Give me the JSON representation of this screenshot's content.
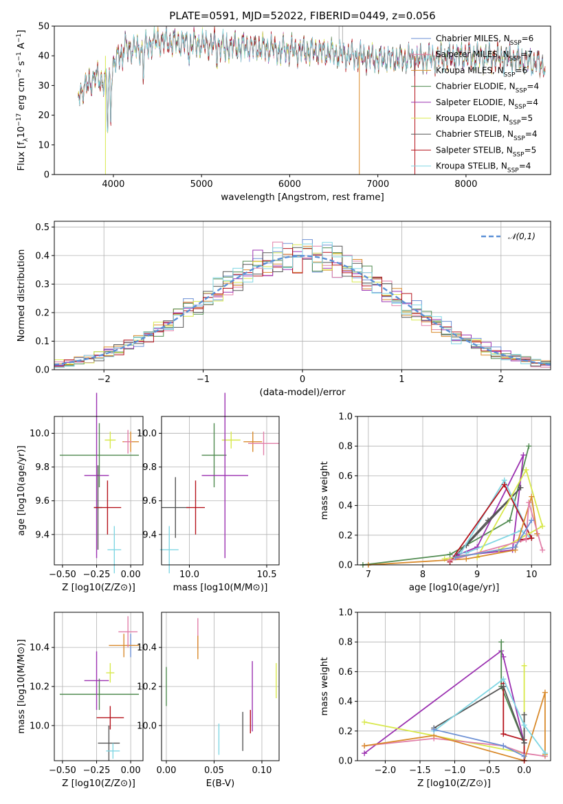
{
  "figure_title": "PLATE=0591, MJD=52022, FIBERID=0449, z=0.056",
  "colors": [
    "#6b8fd4",
    "#e17ea8",
    "#d98a2b",
    "#4f8a4f",
    "#9b30b0",
    "#d8e84a",
    "#555555",
    "#b5121b",
    "#7fd6e3"
  ],
  "chart_data": [
    {
      "type": "line",
      "panel": "spectrum",
      "title": "PLATE=0591, MJD=52022, FIBERID=0449, z=0.056",
      "xlabel": "wavelength [Angstrom, rest frame]",
      "ylabel": "Flux [f_λ 10^-17 erg cm^-2 s^-1 A^-1]",
      "xlim": [
        3330,
        8960
      ],
      "ylim": [
        0,
        50
      ],
      "xticks": [
        "4000",
        "5000",
        "6000",
        "7000",
        "8000"
      ],
      "yticks": [
        "0",
        "10",
        "20",
        "30",
        "40",
        "50"
      ],
      "grid": false,
      "legend_position": "top-right",
      "series": [
        {
          "name": "Chabrier MILES, N_SSP=6"
        },
        {
          "name": "Salpeter MILES, N_SSP=7"
        },
        {
          "name": "Kroupa MILES, N_SSP=6"
        },
        {
          "name": "Chabrier ELODIE, N_SSP=4"
        },
        {
          "name": "Salpeter ELODIE, N_SSP=4"
        },
        {
          "name": "Kroupa ELODIE, N_SSP=5"
        },
        {
          "name": "Chabrier STELIB, N_SSP=4"
        },
        {
          "name": "Salpeter STELIB, N_SSP=5"
        },
        {
          "name": "Kroupa STELIB, N_SSP=4"
        }
      ],
      "continuum": {
        "x": [
          3600,
          3700,
          3800,
          3900,
          4000,
          4100,
          4300,
          4500,
          5000,
          5500,
          6000,
          6500,
          7000,
          7500,
          8000,
          8500,
          8900
        ],
        "y": [
          27,
          30,
          33,
          31,
          36,
          43,
          42,
          45,
          44,
          43,
          42,
          41,
          39,
          39,
          40,
          39,
          37
        ]
      },
      "vertical_lines_x": [
        3910,
        6790,
        7420,
        6560,
        6600
      ]
    },
    {
      "type": "bar",
      "panel": "residual histogram",
      "xlabel": "(data-model)/error",
      "ylabel": "Normed distribution",
      "xlim": [
        -2.5,
        2.5
      ],
      "ylim": [
        0,
        0.52
      ],
      "xticks": [
        "−2",
        "−1",
        "0",
        "1",
        "2"
      ],
      "yticks": [
        "0.0",
        "0.1",
        "0.2",
        "0.3",
        "0.4",
        "0.5"
      ],
      "grid": true,
      "legend_position": "top-right",
      "bins": 50,
      "reference_curve": {
        "name": "𝒩(0,1)",
        "color": "#5a8fd6",
        "dashed": true
      },
      "series_count": 9
    },
    {
      "type": "scatter",
      "panel": "Z vs age",
      "xlabel": "Z [log10(Z/Z⊙)]",
      "ylabel": "age  [log10(age/yr)]",
      "xlim": [
        -0.56,
        0.09
      ],
      "ylim": [
        9.22,
        10.1
      ],
      "xticks": [
        "−0.50",
        "−0.25",
        "0.00"
      ],
      "yticks": [
        "9.4",
        "9.6",
        "9.8",
        "10.0"
      ],
      "grid": true,
      "points": [
        {
          "x": 0.0,
          "y": 9.95,
          "xerr": 0.06,
          "yerr": 0.06,
          "color": "#d98a2b"
        },
        {
          "x": -0.02,
          "y": 9.95,
          "xerr": 0.03,
          "yerr": 0.07,
          "color": "#e17ea8"
        },
        {
          "x": -0.15,
          "y": 9.96,
          "xerr": 0.04,
          "yerr": 0.05,
          "color": "#d8e84a"
        },
        {
          "x": -0.23,
          "y": 9.87,
          "xerr": 0.29,
          "yerr": 0.19,
          "color": "#4f8a4f"
        },
        {
          "x": -0.25,
          "y": 9.75,
          "xerr": 0.09,
          "yerr": 0.49,
          "color": "#9b30b0"
        },
        {
          "x": -0.24,
          "y": 9.56,
          "xerr": 0.03,
          "yerr": 0.25,
          "color": "#555555"
        },
        {
          "x": -0.17,
          "y": 9.56,
          "xerr": 0.1,
          "yerr": 0.16,
          "color": "#b5121b"
        },
        {
          "x": -0.12,
          "y": 9.31,
          "xerr": 0.05,
          "yerr": 0.14,
          "color": "#7fd6e3"
        }
      ]
    },
    {
      "type": "scatter",
      "panel": "mass vs age",
      "xlabel": "mass [log10(M/M⊙)]",
      "ylabel": "",
      "xlim": [
        9.82,
        10.58
      ],
      "ylim": [
        9.22,
        10.1
      ],
      "xticks": [
        "10.0",
        "10.5"
      ],
      "yticks": [
        "9.4",
        "9.6",
        "9.8",
        "10.0"
      ],
      "grid": true,
      "points": [
        {
          "x": 10.41,
          "y": 9.95,
          "xerr": 0.06,
          "yerr": 0.06,
          "color": "#d98a2b"
        },
        {
          "x": 10.48,
          "y": 9.94,
          "xerr": 0.1,
          "yerr": 0.07,
          "color": "#e17ea8"
        },
        {
          "x": 10.27,
          "y": 9.96,
          "xerr": 0.06,
          "yerr": 0.05,
          "color": "#d8e84a"
        },
        {
          "x": 10.16,
          "y": 9.87,
          "xerr": 0.08,
          "yerr": 0.19,
          "color": "#4f8a4f"
        },
        {
          "x": 10.23,
          "y": 9.75,
          "xerr": 0.15,
          "yerr": 0.49,
          "color": "#9b30b0"
        },
        {
          "x": 9.91,
          "y": 9.56,
          "xerr": 0.09,
          "yerr": 0.18,
          "color": "#555555"
        },
        {
          "x": 10.04,
          "y": 9.56,
          "xerr": 0.06,
          "yerr": 0.16,
          "color": "#b5121b"
        },
        {
          "x": 9.87,
          "y": 9.31,
          "xerr": 0.06,
          "yerr": 0.14,
          "color": "#7fd6e3"
        }
      ]
    },
    {
      "type": "line",
      "panel": "age vs mass weight",
      "xlabel": "age  [log10(age/yr)]",
      "ylabel": "mass weight",
      "xlim": [
        6.8,
        10.35
      ],
      "ylim": [
        0,
        1.0
      ],
      "xticks": [
        "7",
        "8",
        "9",
        "10"
      ],
      "yticks": [
        "0.0",
        "0.2",
        "0.4",
        "0.6",
        "0.8",
        "1.0"
      ],
      "grid": true,
      "series": [
        {
          "color": "#4f8a4f",
          "x": [
            6.9,
            8.5,
            9.6,
            9.95
          ],
          "y": [
            0.0,
            0.07,
            0.3,
            0.8
          ]
        },
        {
          "color": "#9b30b0",
          "x": [
            8.6,
            9.0,
            9.85,
            9.65,
            8.65
          ],
          "y": [
            0.06,
            0.12,
            0.74,
            0.1,
            0.06
          ]
        },
        {
          "color": "#555555",
          "x": [
            8.5,
            9.2,
            9.8,
            8.8
          ],
          "y": [
            0.02,
            0.3,
            0.52,
            0.13
          ]
        },
        {
          "color": "#7fd6e3",
          "x": [
            8.7,
            9.5,
            10.0,
            9.8,
            8.8
          ],
          "y": [
            0.08,
            0.57,
            0.18,
            0.23,
            0.08
          ]
        },
        {
          "color": "#b5121b",
          "x": [
            8.5,
            9.5,
            10.0,
            9.8
          ],
          "y": [
            0.02,
            0.54,
            0.18,
            0.17
          ]
        },
        {
          "color": "#d8e84a",
          "x": [
            9.0,
            9.9,
            10.2,
            9.4,
            8.4
          ],
          "y": [
            0.05,
            0.64,
            0.26,
            0.1,
            0.04
          ]
        },
        {
          "color": "#d98a2b",
          "x": [
            7.0,
            8.8,
            9.7,
            10.0,
            10.1
          ],
          "y": [
            0.0,
            0.04,
            0.1,
            0.46,
            0.21
          ]
        },
        {
          "color": "#e17ea8",
          "x": [
            8.5,
            9.9,
            9.95,
            10.2
          ],
          "y": [
            0.03,
            0.17,
            0.42,
            0.1
          ]
        },
        {
          "color": "#6b8fd4",
          "x": [
            8.6,
            9.7,
            10.0
          ],
          "y": [
            0.05,
            0.12,
            0.3
          ]
        }
      ]
    },
    {
      "type": "scatter",
      "panel": "Z vs mass",
      "xlabel": "Z [log10(Z/Z⊙)]",
      "ylabel": "mass [log10(M/M⊙)]",
      "xlim": [
        -0.56,
        0.09
      ],
      "ylim": [
        9.82,
        10.58
      ],
      "xticks": [
        "−0.50",
        "−0.25",
        "0.00"
      ],
      "yticks": [
        "10.0",
        "10.2",
        "10.4"
      ],
      "grid": true,
      "points": [
        {
          "x": 0.0,
          "y": 10.41,
          "xerr": 0.03,
          "yerr": 0.06,
          "color": "#6b8fd4"
        },
        {
          "x": -0.05,
          "y": 10.41,
          "xerr": 0.11,
          "yerr": 0.06,
          "color": "#d98a2b"
        },
        {
          "x": -0.02,
          "y": 10.48,
          "xerr": 0.07,
          "yerr": 0.08,
          "color": "#e17ea8"
        },
        {
          "x": -0.15,
          "y": 10.27,
          "xerr": 0.03,
          "yerr": 0.05,
          "color": "#d8e84a"
        },
        {
          "x": -0.23,
          "y": 10.16,
          "xerr": 0.29,
          "yerr": 0.08,
          "color": "#4f8a4f"
        },
        {
          "x": -0.25,
          "y": 10.23,
          "xerr": 0.09,
          "yerr": 0.15,
          "color": "#9b30b0"
        },
        {
          "x": -0.15,
          "y": 10.04,
          "xerr": 0.1,
          "yerr": 0.06,
          "color": "#b5121b"
        },
        {
          "x": -0.16,
          "y": 9.91,
          "xerr": 0.08,
          "yerr": 0.09,
          "color": "#555555"
        },
        {
          "x": -0.13,
          "y": 9.87,
          "xerr": 0.05,
          "yerr": 0.04,
          "color": "#7fd6e3"
        }
      ]
    },
    {
      "type": "scatter",
      "panel": "E(B-V) vs mass",
      "xlabel": "E(B-V)",
      "ylabel": "",
      "xlim": [
        -0.005,
        0.118
      ],
      "ylim": [
        9.82,
        10.58
      ],
      "xticks": [
        "0.00",
        "0.05",
        "0.10"
      ],
      "yticks": [
        "10.0",
        "10.2",
        "10.4"
      ],
      "grid": true,
      "points": [
        {
          "x": 0.0,
          "y": 10.2,
          "yerr": 0.1,
          "color": "#4f8a4f"
        },
        {
          "x": 0.033,
          "y": 10.47,
          "yerr": 0.08,
          "color": "#e17ea8"
        },
        {
          "x": 0.033,
          "y": 10.4,
          "yerr": 0.06,
          "color": "#d98a2b"
        },
        {
          "x": 0.055,
          "y": 9.93,
          "yerr": 0.08,
          "color": "#7fd6e3"
        },
        {
          "x": 0.08,
          "y": 9.97,
          "yerr": 0.1,
          "color": "#555555"
        },
        {
          "x": 0.088,
          "y": 10.02,
          "yerr": 0.06,
          "color": "#b5121b"
        },
        {
          "x": 0.09,
          "y": 10.15,
          "yerr": 0.18,
          "color": "#9b30b0"
        },
        {
          "x": 0.115,
          "y": 10.23,
          "yerr": 0.09,
          "color": "#d8e84a"
        }
      ]
    },
    {
      "type": "line",
      "panel": "Z vs mass weight",
      "xlabel": "Z [log10(Z/Z⊙)]",
      "ylabel": "mass weight",
      "xlim": [
        -2.4,
        0.38
      ],
      "ylim": [
        0,
        1.0
      ],
      "xticks": [
        "−2.0",
        "−1.5",
        "−1.0",
        "−0.5",
        "0.0"
      ],
      "yticks": [
        "0.0",
        "0.2",
        "0.4",
        "0.6",
        "0.8",
        "1.0"
      ],
      "grid": true,
      "series": [
        {
          "color": "#9b30b0",
          "x": [
            -2.3,
            -0.33,
            -0.3,
            0.0
          ],
          "y": [
            0.05,
            0.74,
            0.7,
            0.12
          ]
        },
        {
          "color": "#4f8a4f",
          "x": [
            -0.33,
            -0.33,
            0.0,
            0.0
          ],
          "y": [
            0.8,
            0.5,
            0.12,
            0.05
          ]
        },
        {
          "color": "#d8e84a",
          "x": [
            -2.3,
            0.0,
            0.0
          ],
          "y": [
            0.26,
            0.05,
            0.64
          ]
        },
        {
          "color": "#e17ea8",
          "x": [
            -2.3,
            -1.3,
            -0.3,
            0.0,
            0.3
          ],
          "y": [
            0.1,
            0.15,
            0.1,
            0.05,
            0.03
          ]
        },
        {
          "color": "#d98a2b",
          "x": [
            -2.3,
            -1.3,
            0.0,
            0.3,
            0.3
          ],
          "y": [
            0.1,
            0.17,
            0.0,
            0.46,
            0.04
          ]
        },
        {
          "color": "#b5121b",
          "x": [
            -0.3,
            -0.3,
            0.0,
            0.0
          ],
          "y": [
            0.52,
            0.18,
            0.14,
            0.0
          ]
        },
        {
          "color": "#555555",
          "x": [
            -1.3,
            -0.3,
            0.0,
            0.0
          ],
          "y": [
            0.22,
            0.5,
            0.12,
            0.31
          ]
        },
        {
          "color": "#7fd6e3",
          "x": [
            -1.3,
            -0.3,
            0.0,
            0.3
          ],
          "y": [
            0.2,
            0.55,
            0.24,
            0.05
          ]
        },
        {
          "color": "#6b8fd4",
          "x": [
            -1.3,
            -0.3,
            0.0
          ],
          "y": [
            0.21,
            0.1,
            0.03
          ]
        }
      ]
    }
  ]
}
